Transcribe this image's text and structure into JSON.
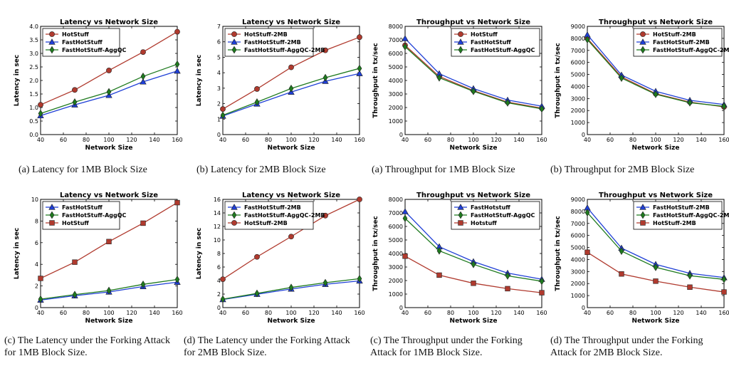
{
  "colors": {
    "red": "#b03a2e",
    "blue": "#1f3fd6",
    "green": "#1e7a1e",
    "axis": "#000000"
  },
  "captions": [
    "(a) Latency for 1MB Block Size",
    "(b) Latency for 2MB Block Size",
    "(a) Throughput for 1MB Block Size",
    "(b) Throughput for 2MB Block Size",
    "(c) The Latency under the Forking Attack for 1MB Block Size.",
    "(d) The Latency under the Forking Attack for 2MB Block Size.",
    "(c) The Throughput under the Forking Attack for 1MB Block Size.",
    "(d) The Throughput under the Forking Attack for 2MB Block Size."
  ],
  "chart_data": [
    {
      "type": "line",
      "title": "Latency vs Network Size",
      "xlabel": "Network Size",
      "ylabel": "Latency in sec",
      "xlim": [
        40,
        160
      ],
      "ylim": [
        0,
        4.0
      ],
      "xticks": [
        "40",
        "60",
        "80",
        "100",
        "120",
        "140",
        "160"
      ],
      "yticks": [
        "0.0",
        "0.5",
        "1.0",
        "1.5",
        "2.0",
        "2.5",
        "3.0",
        "3.5",
        "4.0"
      ],
      "legend_position": "top-left",
      "x": [
        40,
        70,
        100,
        130,
        160
      ],
      "series": [
        {
          "name": "HotStuff",
          "color": "red",
          "marker": "circle",
          "values": [
            1.1,
            1.65,
            2.37,
            3.05,
            3.8
          ]
        },
        {
          "name": "FastHotStuff",
          "color": "blue",
          "marker": "triangle",
          "values": [
            0.7,
            1.1,
            1.45,
            1.95,
            2.35
          ]
        },
        {
          "name": "FastHotStuff-AggQC",
          "color": "green",
          "marker": "diamond",
          "values": [
            0.78,
            1.2,
            1.58,
            2.15,
            2.6
          ]
        }
      ]
    },
    {
      "type": "line",
      "title": "Latency vs Network Size",
      "xlabel": "Network Size",
      "ylabel": "Latency in sec",
      "xlim": [
        40,
        160
      ],
      "ylim": [
        0,
        7
      ],
      "xticks": [
        "40",
        "60",
        "80",
        "100",
        "120",
        "140",
        "160"
      ],
      "yticks": [
        "0",
        "1",
        "2",
        "3",
        "4",
        "5",
        "6",
        "7"
      ],
      "legend_position": "top-left",
      "x": [
        40,
        70,
        100,
        130,
        160
      ],
      "series": [
        {
          "name": "HotStuff-2MB",
          "color": "red",
          "marker": "circle",
          "values": [
            1.65,
            2.95,
            4.35,
            5.45,
            6.3
          ]
        },
        {
          "name": "FastHotStuff-2MB",
          "color": "blue",
          "marker": "triangle",
          "values": [
            1.2,
            1.98,
            2.75,
            3.45,
            3.95
          ]
        },
        {
          "name": "FastHotStuff-AggQC-2MB",
          "color": "green",
          "marker": "diamond",
          "values": [
            1.25,
            2.1,
            2.98,
            3.68,
            4.28
          ]
        }
      ]
    },
    {
      "type": "line",
      "title": "Throughput vs Network Size",
      "xlabel": "Network Size",
      "ylabel": "Throughput in tx/sec",
      "xlim": [
        40,
        160
      ],
      "ylim": [
        0,
        8000
      ],
      "xticks": [
        "40",
        "60",
        "80",
        "100",
        "120",
        "140",
        "160"
      ],
      "yticks": [
        "0",
        "1000",
        "2000",
        "3000",
        "4000",
        "5000",
        "6000",
        "7000",
        "8000"
      ],
      "legend_position": "top-right",
      "x": [
        40,
        70,
        100,
        130,
        160
      ],
      "series": [
        {
          "name": "HotStuff",
          "color": "red",
          "marker": "circle",
          "values": [
            6600,
            4300,
            3250,
            2400,
            1950
          ]
        },
        {
          "name": "FastHotStuff",
          "color": "blue",
          "marker": "triangle",
          "values": [
            7100,
            4500,
            3400,
            2550,
            2100
          ]
        },
        {
          "name": "FastHotStuff-AggQC",
          "color": "green",
          "marker": "diamond",
          "values": [
            6500,
            4200,
            3200,
            2350,
            1900
          ]
        }
      ]
    },
    {
      "type": "line",
      "title": "Throughput vs Network Size",
      "xlabel": "Network Size",
      "ylabel": "Throughput in tx/sec",
      "xlim": [
        40,
        160
      ],
      "ylim": [
        0,
        9000
      ],
      "xticks": [
        "40",
        "60",
        "80",
        "100",
        "120",
        "140",
        "160"
      ],
      "yticks": [
        "0",
        "1000",
        "2000",
        "3000",
        "4000",
        "5000",
        "6000",
        "7000",
        "8000",
        "9000"
      ],
      "legend_position": "top-right",
      "x": [
        40,
        70,
        100,
        130,
        160
      ],
      "series": [
        {
          "name": "HotStuff-2MB",
          "color": "red",
          "marker": "circle",
          "values": [
            8000,
            4800,
            3400,
            2700,
            2300
          ]
        },
        {
          "name": "FastHotStuff-2MB",
          "color": "blue",
          "marker": "triangle",
          "values": [
            8300,
            4950,
            3600,
            2850,
            2500
          ]
        },
        {
          "name": "FastHotStuff-AggQC-2MB",
          "color": "green",
          "marker": "diamond",
          "values": [
            7900,
            4700,
            3350,
            2650,
            2350
          ]
        }
      ]
    },
    {
      "type": "line",
      "title": "Latency vs Network Size",
      "xlabel": "Network Size",
      "ylabel": "Latency in sec",
      "xlim": [
        40,
        160
      ],
      "ylim": [
        0,
        10
      ],
      "xticks": [
        "40",
        "60",
        "80",
        "100",
        "120",
        "140",
        "160"
      ],
      "yticks": [
        "0",
        "2",
        "4",
        "6",
        "8",
        "10"
      ],
      "legend_position": "top-left",
      "x": [
        40,
        70,
        100,
        130,
        160
      ],
      "series": [
        {
          "name": "FastHotStuff",
          "color": "blue",
          "marker": "triangle",
          "values": [
            0.7,
            1.1,
            1.45,
            1.95,
            2.35
          ]
        },
        {
          "name": "FastHotStuff-AggQC",
          "color": "green",
          "marker": "diamond",
          "values": [
            0.78,
            1.2,
            1.58,
            2.15,
            2.6
          ]
        },
        {
          "name": "HotStuff",
          "color": "red",
          "marker": "square",
          "values": [
            2.7,
            4.2,
            6.1,
            7.8,
            9.7
          ]
        }
      ]
    },
    {
      "type": "line",
      "title": "Latency vs Network Size",
      "xlabel": "Network Size",
      "ylabel": "Latency in sec",
      "xlim": [
        40,
        160
      ],
      "ylim": [
        0,
        16
      ],
      "xticks": [
        "40",
        "60",
        "80",
        "100",
        "120",
        "140",
        "160"
      ],
      "yticks": [
        "0",
        "2",
        "4",
        "6",
        "8",
        "10",
        "12",
        "14",
        "16"
      ],
      "legend_position": "top-left",
      "x": [
        40,
        70,
        100,
        130,
        160
      ],
      "series": [
        {
          "name": "FastHotStuff-2MB",
          "color": "blue",
          "marker": "triangle",
          "values": [
            1.2,
            1.98,
            2.75,
            3.45,
            3.95
          ]
        },
        {
          "name": "FastHotStuff-AggQC-2MB",
          "color": "green",
          "marker": "diamond",
          "values": [
            1.25,
            2.1,
            2.98,
            3.68,
            4.28
          ]
        },
        {
          "name": "HotStuff-2MB",
          "color": "red",
          "marker": "circle",
          "values": [
            4.2,
            7.5,
            10.5,
            13.6,
            16.0
          ]
        }
      ]
    },
    {
      "type": "line",
      "title": "Throughput vs Network Size",
      "xlabel": "Network Size",
      "ylabel": "Throughput in tx/sec",
      "xlim": [
        40,
        160
      ],
      "ylim": [
        0,
        8000
      ],
      "xticks": [
        "40",
        "60",
        "80",
        "100",
        "120",
        "140",
        "160"
      ],
      "yticks": [
        "0",
        "1000",
        "2000",
        "3000",
        "4000",
        "5000",
        "6000",
        "7000",
        "8000"
      ],
      "legend_position": "top-right",
      "x": [
        40,
        70,
        100,
        130,
        160
      ],
      "series": [
        {
          "name": "FastHotstuff",
          "color": "blue",
          "marker": "triangle",
          "values": [
            7100,
            4500,
            3400,
            2550,
            2100
          ]
        },
        {
          "name": "FastHotStuff-AggQC",
          "color": "green",
          "marker": "diamond",
          "values": [
            6600,
            4200,
            3200,
            2350,
            1950
          ]
        },
        {
          "name": "Hotstuff",
          "color": "red",
          "marker": "square",
          "values": [
            3800,
            2400,
            1800,
            1400,
            1100
          ]
        }
      ]
    },
    {
      "type": "line",
      "title": "Throughput vs Network Size",
      "xlabel": "Network Size",
      "ylabel": "Throughput in tx/sec",
      "xlim": [
        40,
        160
      ],
      "ylim": [
        0,
        9000
      ],
      "xticks": [
        "40",
        "60",
        "80",
        "100",
        "120",
        "140",
        "160"
      ],
      "yticks": [
        "0",
        "1000",
        "2000",
        "3000",
        "4000",
        "5000",
        "6000",
        "7000",
        "8000",
        "9000"
      ],
      "legend_position": "top-right",
      "x": [
        40,
        70,
        100,
        130,
        160
      ],
      "series": [
        {
          "name": "FastHotStuff-2MB",
          "color": "blue",
          "marker": "triangle",
          "values": [
            8300,
            4950,
            3600,
            2850,
            2500
          ]
        },
        {
          "name": "FastHotStuff-AggQC-2MB",
          "color": "green",
          "marker": "diamond",
          "values": [
            7900,
            4700,
            3350,
            2650,
            2350
          ]
        },
        {
          "name": "HotStuff-2MB",
          "color": "red",
          "marker": "square",
          "values": [
            4600,
            2800,
            2200,
            1700,
            1300
          ]
        }
      ]
    }
  ]
}
